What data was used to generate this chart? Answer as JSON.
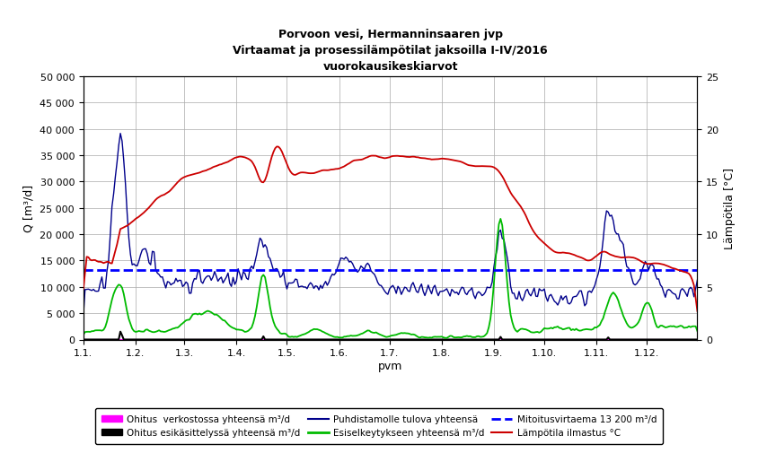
{
  "title1": "Porvoon vesi, Hermanninsaaren jvp",
  "title2": "Virtaamat ja prosessilämpötilat jaksoilla I-IV/2016",
  "title3": "vuorokausikeskiarvot",
  "xlabel": "pvm",
  "ylabel_left": "Q [m³/d]",
  "ylabel_right": "Lämpötila [°C]",
  "ylim_left": [
    0,
    50000
  ],
  "ylim_right": [
    0,
    25
  ],
  "yticks_left": [
    0,
    5000,
    10000,
    15000,
    20000,
    25000,
    30000,
    35000,
    40000,
    45000,
    50000
  ],
  "yticks_right": [
    0,
    5,
    10,
    15,
    20,
    25
  ],
  "xtick_labels": [
    "1.1.",
    "1.2.",
    "1.3.",
    "1.4.",
    "1.5.",
    "1.6.",
    "1.7.",
    "1.8.",
    "1.9.",
    "1.10.",
    "1.11.",
    "1.12."
  ],
  "n_points": 366,
  "mitoitusvirtaama": 13200,
  "background_color": "#ffffff",
  "grid_color": "#aaaaaa",
  "legend_entries": [
    {
      "label": "Ohitus  verkostossa yhteensä m³/d",
      "color": "#ff00ff",
      "lw": 2
    },
    {
      "label": "Ohitus esikäsittelyssä yhteensä m³/d",
      "color": "#000000",
      "lw": 2
    },
    {
      "label": "Puhdistamolle tulova yhteensä",
      "color": "#00008b",
      "lw": 1.5
    },
    {
      "label": "Esiselkeytykseen yhteensä m³/d",
      "color": "#00cc00",
      "lw": 2
    },
    {
      "label": "Mitoitusvirtaema 13 200 m³/d",
      "color": "#0000ff",
      "lw": 2,
      "ls": "--"
    },
    {
      "label": "Lämpötila ilmastus °C",
      "color": "#cc0000",
      "lw": 1.5
    }
  ],
  "month_days": [
    0,
    31,
    60,
    91,
    121,
    152,
    182,
    213,
    244,
    274,
    305,
    335,
    366
  ]
}
